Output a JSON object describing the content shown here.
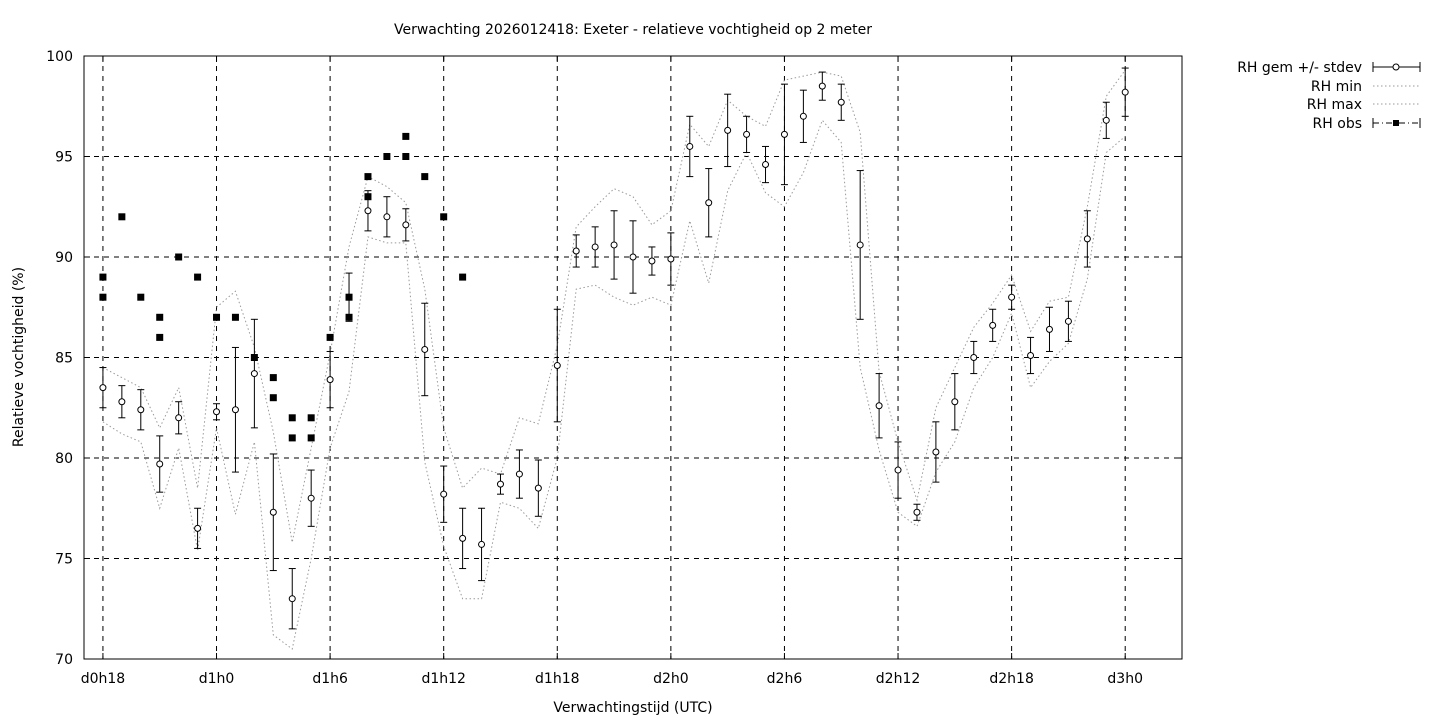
{
  "chart_data": {
    "type": "line",
    "title": "Verwachting 2026012418: Exeter - relatieve vochtigheid op 2 meter",
    "xlabel": "Verwachtingstijd (UTC)",
    "ylabel": "Relatieve vochtigheid (%)",
    "ylim": [
      70,
      100
    ],
    "xlim_hours": [
      -1,
      57
    ],
    "grid": true,
    "legend_position": "outside-top-right",
    "x_ticks": [
      {
        "h": 0,
        "label": "d0h18"
      },
      {
        "h": 6,
        "label": "d1h0"
      },
      {
        "h": 12,
        "label": "d1h6"
      },
      {
        "h": 18,
        "label": "d1h12"
      },
      {
        "h": 24,
        "label": "d1h18"
      },
      {
        "h": 30,
        "label": "d2h0"
      },
      {
        "h": 36,
        "label": "d2h6"
      },
      {
        "h": 42,
        "label": "d2h12"
      },
      {
        "h": 48,
        "label": "d2h18"
      },
      {
        "h": 54,
        "label": "d3h0"
      }
    ],
    "y_ticks": [
      {
        "v": 70,
        "label": "70"
      },
      {
        "v": 75,
        "label": "75"
      },
      {
        "v": 80,
        "label": "80"
      },
      {
        "v": 85,
        "label": "85"
      },
      {
        "v": 90,
        "label": "90"
      },
      {
        "v": 95,
        "label": "95"
      },
      {
        "v": 100,
        "label": "100"
      }
    ],
    "series": [
      {
        "name": "RH gem +/- stdev",
        "style": "errorbars",
        "x": [
          0,
          1,
          2,
          3,
          4,
          5,
          6,
          7,
          8,
          9,
          10,
          11,
          12,
          13,
          14,
          15,
          16,
          17,
          18,
          19,
          20,
          21,
          22,
          23,
          24,
          25,
          26,
          27,
          28,
          29,
          30,
          31,
          32,
          33,
          34,
          35,
          36,
          37,
          38,
          39,
          40,
          41,
          42,
          43,
          44,
          45,
          46,
          47,
          48,
          49,
          50,
          51,
          52,
          53,
          54
        ],
        "y": [
          83.5,
          82.8,
          82.4,
          79.7,
          82.0,
          76.5,
          82.3,
          82.4,
          84.2,
          77.3,
          73.0,
          78.0,
          83.9,
          88.0,
          92.3,
          92.0,
          91.6,
          85.4,
          78.2,
          76.0,
          75.7,
          78.7,
          79.2,
          78.5,
          84.6,
          90.3,
          90.5,
          90.6,
          90.0,
          89.8,
          89.9,
          95.5,
          92.7,
          96.3,
          96.1,
          94.6,
          96.1,
          97.0,
          98.5,
          97.7,
          90.6,
          82.6,
          79.4,
          77.3,
          80.3,
          82.8,
          85.0,
          86.6,
          88.0,
          85.1,
          86.4,
          86.8,
          90.9,
          96.8,
          98.2
        ],
        "err": [
          1.0,
          0.8,
          1.0,
          1.4,
          0.8,
          1.0,
          0.4,
          3.1,
          2.7,
          2.9,
          1.5,
          1.4,
          1.4,
          1.2,
          1.0,
          1.0,
          0.8,
          2.3,
          1.4,
          1.5,
          1.8,
          0.5,
          1.2,
          1.4,
          2.8,
          0.8,
          1.0,
          1.7,
          1.8,
          0.7,
          1.3,
          1.5,
          1.7,
          1.8,
          0.9,
          0.9,
          2.5,
          1.3,
          0.7,
          0.9,
          3.7,
          1.6,
          1.4,
          0.4,
          1.5,
          1.4,
          0.8,
          0.8,
          0.6,
          0.9,
          1.1,
          1.0,
          1.4,
          0.9,
          1.2
        ]
      },
      {
        "name": "RH min",
        "style": "dotted",
        "x": [
          0,
          1,
          2,
          3,
          4,
          5,
          6,
          7,
          8,
          9,
          10,
          11,
          12,
          13,
          14,
          15,
          16,
          17,
          18,
          19,
          20,
          21,
          22,
          23,
          24,
          25,
          26,
          27,
          28,
          29,
          30,
          31,
          32,
          33,
          34,
          35,
          36,
          37,
          38,
          39,
          40,
          41,
          42,
          43,
          44,
          45,
          46,
          47,
          48,
          49,
          50,
          51,
          52,
          53,
          54
        ],
        "y": [
          81.8,
          81.2,
          80.8,
          77.5,
          80.5,
          75.4,
          81.5,
          77.2,
          80.8,
          71.2,
          70.5,
          75.0,
          80.5,
          83.3,
          91.0,
          90.7,
          90.7,
          79.8,
          75.6,
          73.0,
          73.0,
          77.8,
          77.5,
          76.5,
          80.0,
          88.4,
          88.6,
          88.0,
          87.6,
          88.0,
          87.6,
          91.8,
          88.7,
          93.3,
          95.2,
          93.2,
          92.5,
          94.2,
          96.8,
          95.7,
          84.5,
          80.4,
          77.3,
          76.6,
          79.3,
          80.8,
          83.5,
          85.0,
          87.2,
          83.5,
          84.8,
          85.7,
          88.9,
          95.2,
          96.0
        ]
      },
      {
        "name": "RH max",
        "style": "dotted",
        "x": [
          0,
          1,
          2,
          3,
          4,
          5,
          6,
          7,
          8,
          9,
          10,
          11,
          12,
          13,
          14,
          15,
          16,
          17,
          18,
          19,
          20,
          21,
          22,
          23,
          24,
          25,
          26,
          27,
          28,
          29,
          30,
          31,
          32,
          33,
          34,
          35,
          36,
          37,
          38,
          39,
          40,
          41,
          42,
          43,
          44,
          45,
          46,
          47,
          48,
          49,
          50,
          51,
          52,
          53,
          54
        ],
        "y": [
          84.5,
          84.0,
          83.5,
          81.5,
          83.5,
          78.5,
          87.5,
          88.3,
          85.5,
          81.3,
          75.8,
          80.5,
          85.2,
          90.5,
          94.0,
          93.5,
          92.7,
          88.4,
          81.5,
          78.5,
          79.5,
          79.2,
          82.0,
          81.7,
          85.6,
          91.5,
          92.5,
          93.4,
          93.0,
          91.6,
          92.3,
          96.6,
          95.5,
          97.8,
          97.0,
          96.5,
          98.8,
          99.0,
          99.2,
          99.0,
          96.2,
          84.3,
          80.8,
          77.9,
          82.5,
          84.5,
          86.5,
          87.7,
          89.1,
          86.3,
          87.8,
          88.0,
          92.5,
          98.0,
          99.3
        ]
      },
      {
        "name": "RH obs",
        "style": "squares",
        "points": [
          [
            0,
            89
          ],
          [
            0,
            88
          ],
          [
            1,
            92
          ],
          [
            2,
            88
          ],
          [
            3,
            87
          ],
          [
            3,
            86
          ],
          [
            4,
            90
          ],
          [
            5,
            89
          ],
          [
            6,
            87
          ],
          [
            7,
            87
          ],
          [
            8,
            85
          ],
          [
            9,
            84
          ],
          [
            9,
            83
          ],
          [
            10,
            82
          ],
          [
            10,
            81
          ],
          [
            11,
            82
          ],
          [
            11,
            81
          ],
          [
            12,
            86
          ],
          [
            13,
            88
          ],
          [
            13,
            87
          ],
          [
            14,
            94
          ],
          [
            14,
            93
          ],
          [
            15,
            95
          ],
          [
            16,
            96
          ],
          [
            16,
            95
          ],
          [
            17,
            94
          ],
          [
            18,
            92
          ],
          [
            19,
            89
          ]
        ]
      }
    ]
  }
}
